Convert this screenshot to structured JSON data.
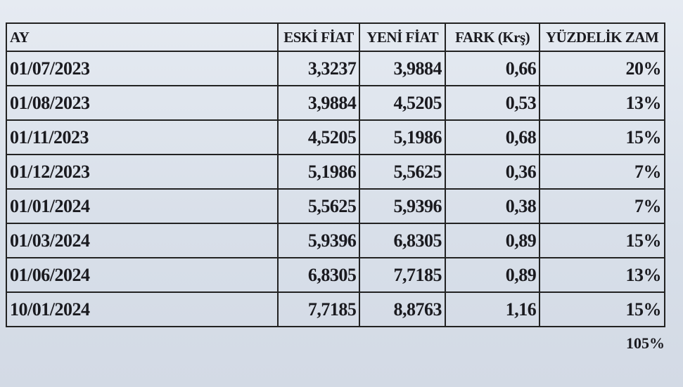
{
  "table": {
    "headers": [
      "AY",
      "ESKİ FİAT",
      "YENİ FİAT",
      "FARK (Krş)",
      "YÜZDELİK ZAM"
    ],
    "rows": [
      [
        "01/07/2023",
        "3,3237",
        "3,9884",
        "0,66",
        "20%"
      ],
      [
        "01/08/2023",
        "3,9884",
        "4,5205",
        "0,53",
        "13%"
      ],
      [
        "01/11/2023",
        "4,5205",
        "5,1986",
        "0,68",
        "15%"
      ],
      [
        "01/12/2023",
        "5,1986",
        "5,5625",
        "0,36",
        "7%"
      ],
      [
        "01/01/2024",
        "5,5625",
        "5,9396",
        "0,38",
        "7%"
      ],
      [
        "01/03/2024",
        "5,9396",
        "6,8305",
        "0,89",
        "15%"
      ],
      [
        "01/06/2024",
        "6,8305",
        "7,7185",
        "0,89",
        "13%"
      ],
      [
        "10/01/2024",
        "7,7185",
        "8,8763",
        "1,16",
        "15%"
      ]
    ],
    "total": "105%"
  }
}
